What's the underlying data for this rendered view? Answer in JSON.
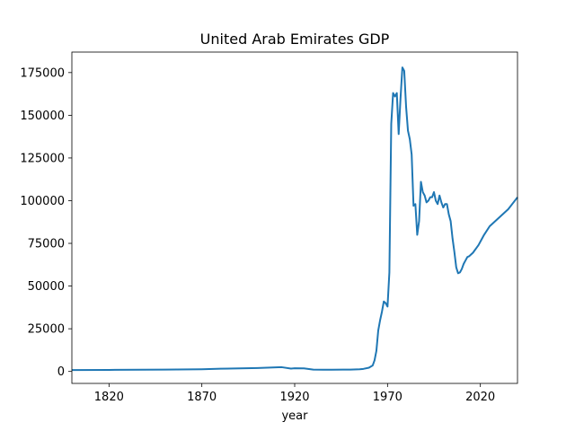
{
  "chart_data": {
    "type": "line",
    "title": "United Arab Emirates GDP",
    "xlabel": "year",
    "ylabel": "",
    "xlim": [
      1800,
      2040
    ],
    "ylim": [
      -7000,
      187000
    ],
    "xticks": [
      1820,
      1870,
      1920,
      1970,
      2020
    ],
    "yticks": [
      0,
      25000,
      50000,
      75000,
      100000,
      125000,
      150000,
      175000
    ],
    "grid": false,
    "legend": "none",
    "series": [
      {
        "color": "#1f77b4",
        "x": [
          1800,
          1820,
          1850,
          1870,
          1880,
          1900,
          1913,
          1918,
          1920,
          1925,
          1930,
          1935,
          1940,
          1950,
          1955,
          1957,
          1960,
          1962,
          1963,
          1964,
          1965,
          1966,
          1967,
          1968,
          1969,
          1970,
          1971,
          1972,
          1973,
          1974,
          1975,
          1976,
          1977,
          1978,
          1979,
          1980,
          1981,
          1982,
          1983,
          1984,
          1985,
          1986,
          1987,
          1988,
          1989,
          1990,
          1991,
          1992,
          1993,
          1994,
          1995,
          1996,
          1997,
          1998,
          1999,
          2000,
          2001,
          2002,
          2003,
          2004,
          2005,
          2006,
          2007,
          2008,
          2009,
          2010,
          2011,
          2012,
          2013,
          2014,
          2015,
          2016,
          2017,
          2018,
          2019,
          2020,
          2022,
          2025,
          2030,
          2035,
          2040
        ],
        "y": [
          800,
          900,
          1100,
          1300,
          1600,
          2000,
          2500,
          1700,
          1900,
          1800,
          1100,
          1000,
          1000,
          1100,
          1300,
          1500,
          2200,
          3500,
          6500,
          12000,
          24000,
          30000,
          35000,
          41000,
          40000,
          38000,
          58000,
          145000,
          163000,
          161000,
          163000,
          139000,
          160000,
          178000,
          176000,
          155000,
          141000,
          136000,
          127000,
          97000,
          98000,
          80000,
          88000,
          111000,
          105000,
          103000,
          99000,
          100000,
          102000,
          102000,
          105000,
          100000,
          98000,
          103000,
          99000,
          96000,
          98000,
          98000,
          92000,
          88000,
          78000,
          70000,
          61000,
          57500,
          58000,
          60000,
          63000,
          65000,
          67000,
          67500,
          68500,
          69500,
          71000,
          72500,
          74000,
          76000,
          80000,
          85000,
          90000,
          95000,
          102000
        ]
      }
    ]
  }
}
